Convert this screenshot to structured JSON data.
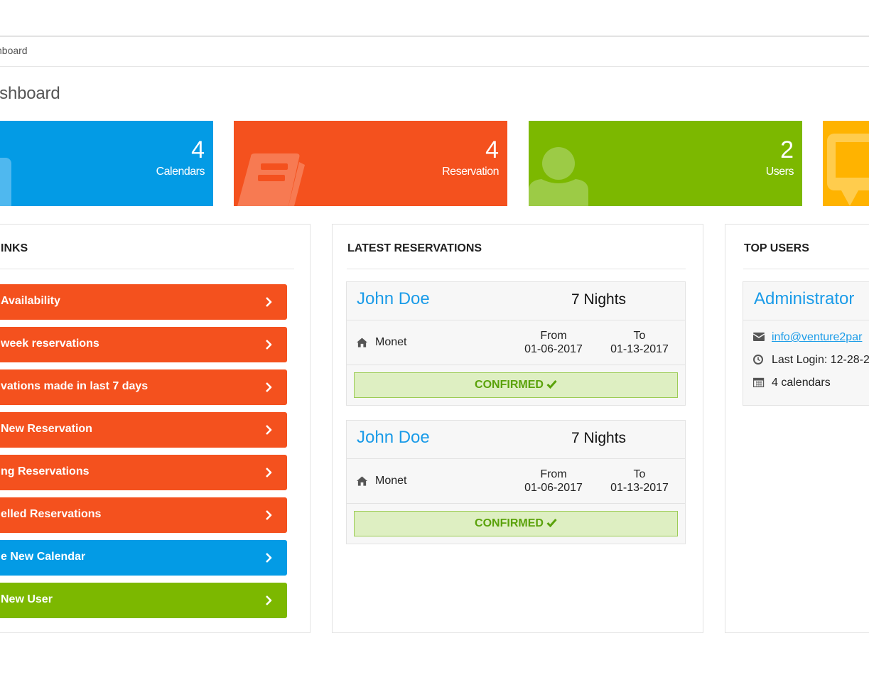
{
  "breadcrumb": "shboard",
  "page_title": "ashboard",
  "stats": [
    {
      "value": "4",
      "label": "Calendars",
      "color": "#039be5",
      "icon": "calendar-icon"
    },
    {
      "value": "4",
      "label": "Reservation",
      "color": "#f4511e",
      "icon": "book-icon"
    },
    {
      "value": "2",
      "label": "Users",
      "color": "#7cb800",
      "icon": "user-icon"
    },
    {
      "value": "",
      "label": "",
      "color": "#ffb300",
      "icon": "comment-icon"
    }
  ],
  "links_panel": {
    "title": "INKS",
    "items": [
      {
        "label": "Availability",
        "color": "#f4511e"
      },
      {
        "label": "week reservations",
        "color": "#f4511e"
      },
      {
        "label": "vations made in last 7 days",
        "color": "#f4511e"
      },
      {
        "label": "New Reservation",
        "color": "#f4511e"
      },
      {
        "label": "ng Reservations",
        "color": "#f4511e"
      },
      {
        "label": "elled Reservations",
        "color": "#f4511e"
      },
      {
        "label": "e New Calendar",
        "color": "#039be5"
      },
      {
        "label": "New User",
        "color": "#7cb800"
      }
    ]
  },
  "latest_reservations": {
    "title": "LATEST RESERVATIONS",
    "items": [
      {
        "name": "John Doe",
        "nights": "7 Nights",
        "calendar": "Monet",
        "from_label": "From",
        "from_date": "01-06-2017",
        "to_label": "To",
        "to_date": "01-13-2017",
        "status": "CONFIRMED"
      },
      {
        "name": "John Doe",
        "nights": "7 Nights",
        "calendar": "Monet",
        "from_label": "From",
        "from_date": "01-06-2017",
        "to_label": "To",
        "to_date": "01-13-2017",
        "status": "CONFIRMED"
      }
    ]
  },
  "top_users": {
    "title": "TOP USERS",
    "user": {
      "name": "Administrator",
      "email": "info@venture2par",
      "last_login": "Last Login: 12-28-2",
      "calendars": "4 calendars"
    }
  }
}
